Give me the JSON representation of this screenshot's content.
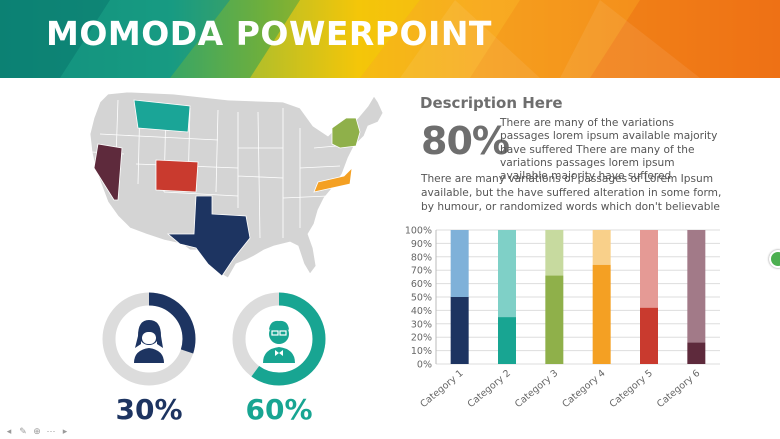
{
  "header": {
    "title": "MOMODA POWERPOINT",
    "colors": [
      "#0f8c7c",
      "#2aa487",
      "#f3c300",
      "#f7a21b",
      "#f07a16"
    ]
  },
  "description": {
    "heading": "Description Here",
    "percent": "80%",
    "paragraph1": "There are many of the variations passages lorem ipsum available majority have suffered There are many of the variations passages lorem ipsum available majority have suffered",
    "paragraph2": "There are many variations of passages  of Lorem Ipsum available, but the have suffered alteration in some  form, by humour, or randomized words which  don't believable"
  },
  "donuts": [
    {
      "label": "30%",
      "value": 0.3,
      "color": "#1d3461",
      "icon": "female-avatar-icon"
    },
    {
      "label": "60%",
      "value": 0.6,
      "color": "#18a592",
      "icon": "male-avatar-icon"
    }
  ],
  "map": {
    "highlighted_states": [
      {
        "state": "Montana",
        "color": "#1aa597"
      },
      {
        "state": "Nevada",
        "color": "#5e2a3c"
      },
      {
        "state": "Colorado",
        "color": "#c93a2e"
      },
      {
        "state": "Texas",
        "color": "#1d3461"
      },
      {
        "state": "New York",
        "color": "#8fb04a"
      },
      {
        "state": "Virginia",
        "color": "#f4a023"
      }
    ],
    "base_color": "#d4d4d4"
  },
  "chart_data": {
    "type": "bar",
    "stacked": true,
    "categories": [
      "Category 1",
      "Category 2",
      "Category 3",
      "Category 4",
      "Category 5",
      "Category 6"
    ],
    "series_values": [
      50,
      35,
      66,
      74,
      42,
      16
    ],
    "remainder_values": [
      50,
      65,
      34,
      26,
      58,
      84
    ],
    "colors": [
      "#1d3461",
      "#18a592",
      "#8fb04a",
      "#f4a023",
      "#c93a2e",
      "#5e2a3c"
    ],
    "light_colors": [
      "#7fb1d9",
      "#7fd0c7",
      "#c7da9f",
      "#f9d08a",
      "#e59a95",
      "#a27a88"
    ],
    "ylim": [
      0,
      100
    ],
    "yticks": [
      "0%",
      "10%",
      "20%",
      "30%",
      "40%",
      "50%",
      "60%",
      "70%",
      "80%",
      "90%",
      "100%"
    ],
    "grid": true
  }
}
